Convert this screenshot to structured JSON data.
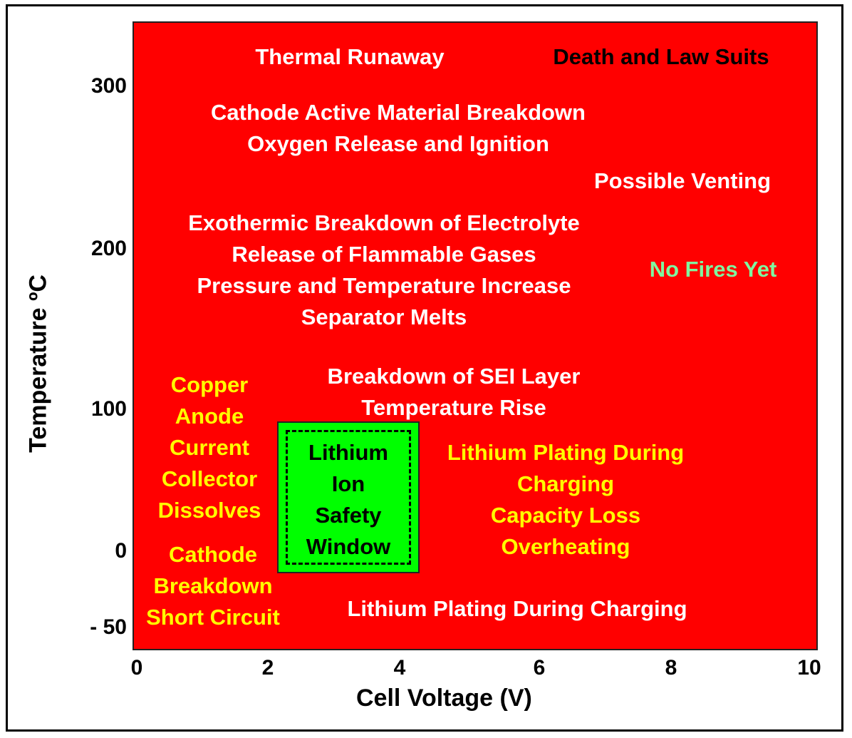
{
  "colors": {
    "background": "#ff0000",
    "safe_window": "#00ff00",
    "white_text": "#ffffff",
    "yellow_text": "#ffff00",
    "green_text": "#7ff7a0",
    "black_text": "#000000"
  },
  "axes": {
    "xlabel": "Cell Voltage (V)",
    "ylabel": "Temperature ºC",
    "x_ticks": [
      "0",
      "2",
      "4",
      "6",
      "8",
      "10"
    ],
    "y_ticks": [
      "300",
      "200",
      "100",
      "0",
      "- 50"
    ]
  },
  "labels": {
    "thermal_runaway": "Thermal Runaway",
    "death_law_suits": "Death and Law Suits",
    "cathode_breakdown_top": "Cathode Active Material Breakdown\nOxygen Release and Ignition",
    "possible_venting": "Possible Venting",
    "electrolyte_block": "Exothermic Breakdown of Electrolyte\nRelease of Flammable Gases\nPressure and Temperature Increase\nSeparator Melts",
    "no_fires_yet": "No Fires Yet",
    "sei_block": "Breakdown of SEI Layer\nTemperature Rise",
    "copper_block": "Copper\nAnode\nCurrent\nCollector\nDissolves",
    "cathode_low_block": "Cathode\nBreakdown\nShort Circuit",
    "plating_right_block": "Lithium Plating During\nCharging\nCapacity Loss\nOverheating",
    "plating_bottom": "Lithium Plating During Charging",
    "safety_window": "Lithium\nIon\nSafety\nWindow"
  }
}
